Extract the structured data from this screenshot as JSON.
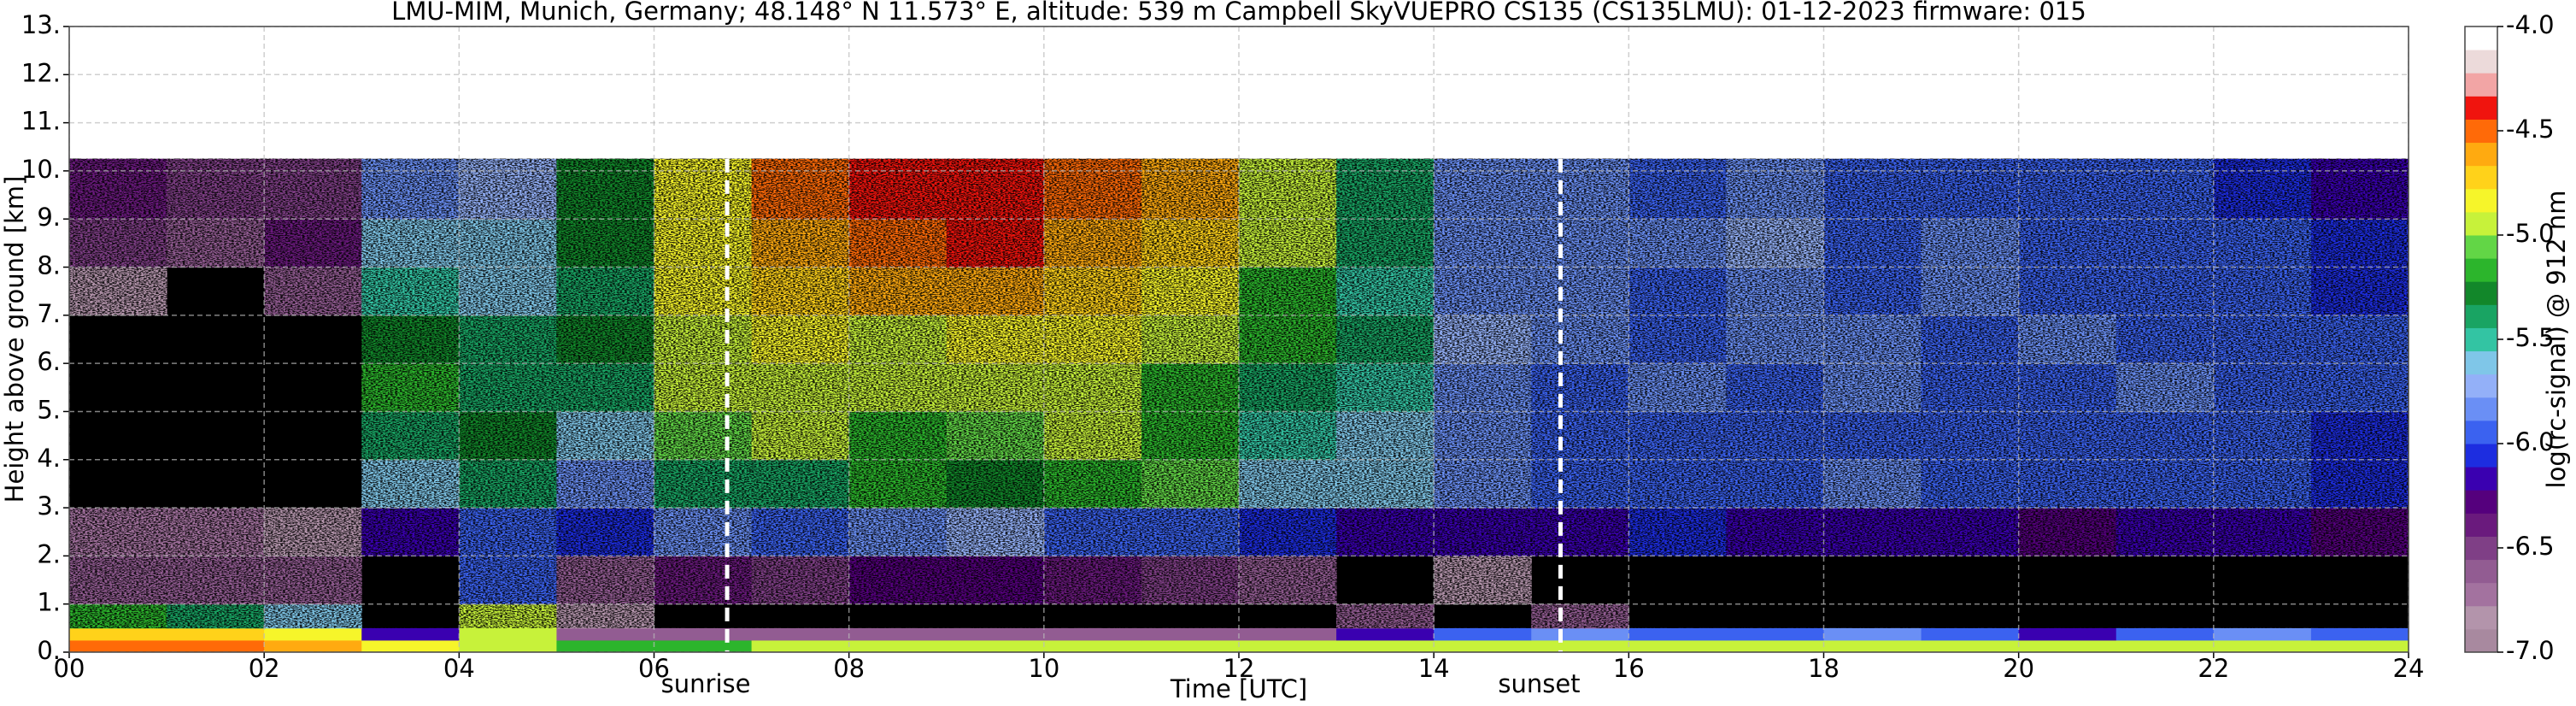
{
  "chart_data": {
    "type": "heatmap",
    "title": "LMU-MIM, Munich, Germany; 48.148° N 11.573° E, altitude: 539 m    Campbell SkyVUEPRO CS135 (CS135LMU): 01-12-2023    firmware: 015",
    "x_label": "Time [UTC]",
    "y_label": "Height above ground [km]",
    "colorbar_label": "log(rc-signal) @ 912 nm",
    "xlim": [
      0,
      24
    ],
    "xticks": [
      {
        "value": 0,
        "label": "00"
      },
      {
        "value": 2,
        "label": "02"
      },
      {
        "value": 4,
        "label": "04"
      },
      {
        "value": 6,
        "label": "06"
      },
      {
        "value": 8,
        "label": "08"
      },
      {
        "value": 10,
        "label": "10"
      },
      {
        "value": 12,
        "label": "12"
      },
      {
        "value": 14,
        "label": "14"
      },
      {
        "value": 16,
        "label": "16"
      },
      {
        "value": 18,
        "label": "18"
      },
      {
        "value": 20,
        "label": "20"
      },
      {
        "value": 22,
        "label": "22"
      },
      {
        "value": 24,
        "label": "24"
      }
    ],
    "ylim": [
      0,
      13
    ],
    "yticks": [
      {
        "value": 0,
        "label": "0."
      },
      {
        "value": 1,
        "label": "1."
      },
      {
        "value": 2,
        "label": "2."
      },
      {
        "value": 3,
        "label": "3."
      },
      {
        "value": 4,
        "label": "4."
      },
      {
        "value": 5,
        "label": "5."
      },
      {
        "value": 6,
        "label": "6."
      },
      {
        "value": 7,
        "label": "7."
      },
      {
        "value": 8,
        "label": "8."
      },
      {
        "value": 9,
        "label": "9."
      },
      {
        "value": 10,
        "label": "10."
      },
      {
        "value": 11,
        "label": "11."
      },
      {
        "value": 12,
        "label": "12."
      },
      {
        "value": 13,
        "label": "13."
      }
    ],
    "clim": [
      -7,
      -4
    ],
    "cticks": [
      {
        "value": -7,
        "label": "-7.0"
      },
      {
        "value": -6.5,
        "label": "-6.5"
      },
      {
        "value": -6,
        "label": "-6.0"
      },
      {
        "value": -5.5,
        "label": "-5.5"
      },
      {
        "value": -5,
        "label": "-5.0"
      },
      {
        "value": -4.5,
        "label": "-4.5"
      },
      {
        "value": -4,
        "label": "-4.0"
      }
    ],
    "colors": [
      "#a8899f",
      "#b394ab",
      "#a3729f",
      "#925c92",
      "#7f3f86",
      "#6a1a7d",
      "#55007d",
      "#3a00b0",
      "#1d2de0",
      "#3b62f0",
      "#6a8ff5",
      "#93b0f8",
      "#7fc6e8",
      "#33c4a3",
      "#19a463",
      "#12872a",
      "#2cb52c",
      "#62d646",
      "#c7f23a",
      "#f6f52a",
      "#ffd21a",
      "#ffaa10",
      "#ff6a08",
      "#f0140e",
      "#f2a5a5",
      "#ecdada",
      "#ffffff"
    ],
    "no_signal_color": "#000000",
    "grid": true,
    "annotations": [
      {
        "text": "sunrise",
        "x": 6.75
      },
      {
        "text": "sunset",
        "x": 15.3
      }
    ],
    "x_edges": [
      0,
      1,
      2,
      3,
      4,
      5,
      6,
      7,
      8,
      9,
      10,
      11,
      12,
      13,
      14,
      15,
      16,
      17,
      18,
      19,
      20,
      21,
      22,
      23,
      24
    ],
    "y_edges": [
      0,
      0.25,
      0.5,
      1,
      2,
      3,
      4,
      5,
      6,
      7,
      8,
      9,
      10.25
    ],
    "z": [
      [
        -4.5,
        -4.5,
        -4.6,
        -4.8,
        -5.0,
        -5.2,
        -5.2,
        -5.0,
        -5.0,
        -5.0,
        -5.0,
        -5.0,
        -5.0,
        -5.0,
        -5.0,
        -5.0,
        -5.0,
        -5.0,
        -5.0,
        -5.0,
        -5.0,
        -5.0,
        -5.0,
        -5.0
      ],
      [
        -4.7,
        -4.7,
        -4.8,
        -6.2,
        -5.0,
        -6.6,
        -6.6,
        -6.6,
        -6.6,
        -6.6,
        -6.6,
        -6.6,
        -6.6,
        -6.2,
        -6.0,
        -5.8,
        -6.0,
        -6.0,
        -5.8,
        -6.0,
        -6.2,
        -6.0,
        -5.8,
        -6.0
      ],
      [
        -5.2,
        -5.4,
        -5.6,
        null,
        -5.0,
        -6.8,
        null,
        null,
        null,
        null,
        null,
        null,
        null,
        -6.6,
        null,
        -6.6,
        null,
        null,
        null,
        null,
        null,
        null,
        null,
        null
      ],
      [
        -6.6,
        -6.6,
        -6.6,
        null,
        -6.0,
        -6.6,
        -6.4,
        -6.5,
        -6.3,
        -6.3,
        -6.4,
        -6.5,
        -6.6,
        null,
        -6.8,
        null,
        null,
        null,
        null,
        null,
        null,
        null,
        null,
        null
      ],
      [
        -6.7,
        -6.7,
        -6.8,
        -6.2,
        -6.0,
        -6.1,
        -5.8,
        -6.0,
        -5.8,
        -5.7,
        -5.9,
        -6.0,
        -6.1,
        -6.2,
        -6.2,
        -6.2,
        -6.1,
        -6.2,
        -6.2,
        -6.2,
        -6.3,
        -6.2,
        -6.2,
        -6.3
      ],
      [
        null,
        null,
        null,
        -5.6,
        -5.4,
        -5.8,
        -5.4,
        -5.4,
        -5.2,
        -5.3,
        -5.2,
        -5.1,
        -5.6,
        -5.6,
        -5.8,
        -6.0,
        -5.9,
        -6.0,
        -5.8,
        -5.9,
        -6.0,
        -6.0,
        -6.0,
        -6.1
      ],
      [
        null,
        null,
        null,
        -5.4,
        -5.3,
        -5.6,
        -5.1,
        -5.0,
        -5.2,
        -5.1,
        -5.0,
        -5.2,
        -5.5,
        -5.6,
        -5.8,
        -5.9,
        -5.9,
        -6.0,
        -5.9,
        -5.9,
        -6.0,
        -5.9,
        -6.0,
        -6.1
      ],
      [
        null,
        null,
        null,
        -5.2,
        -5.4,
        -5.4,
        -5.0,
        -4.9,
        -5.0,
        -5.0,
        -4.9,
        -5.2,
        -5.4,
        -5.5,
        -5.8,
        -5.9,
        -5.8,
        -5.9,
        -5.8,
        -6.0,
        -5.9,
        -5.8,
        -5.9,
        -6.0
      ],
      [
        null,
        null,
        null,
        -5.3,
        -5.4,
        -5.3,
        -4.9,
        -4.8,
        -4.9,
        -4.8,
        -4.8,
        -5.0,
        -5.2,
        -5.4,
        -5.7,
        -5.8,
        -5.9,
        -5.8,
        -5.8,
        -5.9,
        -5.8,
        -5.9,
        -6.0,
        -6.0
      ],
      [
        -6.8,
        null,
        -6.6,
        -5.5,
        -5.6,
        -5.4,
        -4.8,
        -4.7,
        -4.6,
        -4.6,
        -4.7,
        -4.8,
        -5.2,
        -5.5,
        -5.8,
        -5.8,
        -5.9,
        -5.8,
        -5.9,
        -5.8,
        -5.9,
        -5.9,
        -6.0,
        -6.1
      ],
      [
        -6.5,
        -6.6,
        -6.4,
        -5.6,
        -5.6,
        -5.3,
        -4.8,
        -4.6,
        -4.5,
        -4.4,
        -4.6,
        -4.7,
        -5.0,
        -5.4,
        -5.8,
        -5.8,
        -5.8,
        -5.7,
        -5.9,
        -5.8,
        -5.9,
        -6.0,
        -6.0,
        -6.1
      ],
      [
        -6.4,
        -6.5,
        -6.5,
        -5.8,
        -5.7,
        -5.3,
        -4.8,
        -4.5,
        -4.4,
        -4.4,
        -4.5,
        -4.6,
        -5.0,
        -5.4,
        -5.8,
        -5.8,
        -5.9,
        -5.8,
        -6.0,
        -5.9,
        -6.0,
        -6.0,
        -6.1,
        -6.2
      ]
    ]
  }
}
